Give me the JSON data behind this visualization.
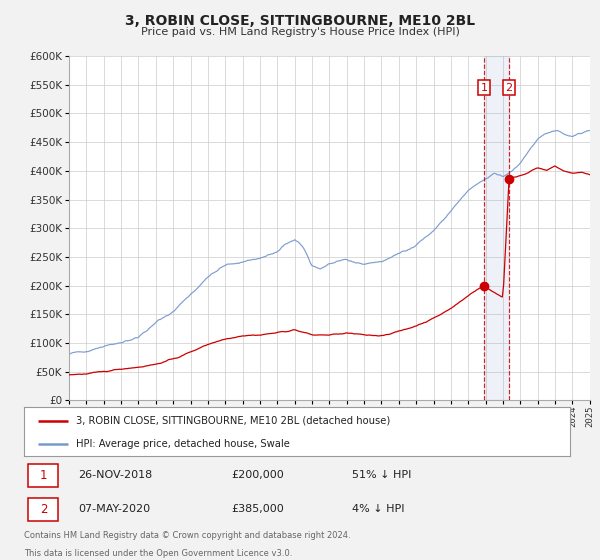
{
  "title": "3, ROBIN CLOSE, SITTINGBOURNE, ME10 2BL",
  "subtitle": "Price paid vs. HM Land Registry's House Price Index (HPI)",
  "legend_line1": "3, ROBIN CLOSE, SITTINGBOURNE, ME10 2BL (detached house)",
  "legend_line2": "HPI: Average price, detached house, Swale",
  "note1": "Contains HM Land Registry data © Crown copyright and database right 2024.",
  "note2": "This data is licensed under the Open Government Licence v3.0.",
  "table_row1": [
    "1",
    "26-NOV-2018",
    "£200,000",
    "51% ↓ HPI"
  ],
  "table_row2": [
    "2",
    "07-MAY-2020",
    "£385,000",
    "4% ↓ HPI"
  ],
  "red_color": "#cc0000",
  "blue_color": "#7799cc",
  "background_color": "#f2f2f2",
  "plot_bg_color": "#ffffff",
  "grid_color": "#cccccc",
  "sale1_date": 2018.9,
  "sale1_price": 200000,
  "sale2_date": 2020.35,
  "sale2_price": 385000,
  "ylim": [
    0,
    600000
  ],
  "xlim_start": 1995,
  "xlim_end": 2025,
  "shade_start": 2018.9,
  "shade_end": 2020.35,
  "hpi_anchors_x": [
    1995,
    1996,
    1997,
    1998,
    1999,
    2000,
    2001,
    2002,
    2003,
    2004,
    2005,
    2006,
    2007,
    2007.5,
    2008,
    2008.5,
    2009,
    2009.5,
    2010,
    2011,
    2012,
    2013,
    2014,
    2015,
    2016,
    2017,
    2018,
    2019,
    2019.5,
    2020,
    2020.5,
    2021,
    2021.5,
    2022,
    2022.5,
    2023,
    2023.5,
    2024,
    2024.5,
    2025
  ],
  "hpi_anchors_y": [
    80000,
    87000,
    95000,
    102000,
    110000,
    135000,
    155000,
    185000,
    215000,
    235000,
    242000,
    248000,
    258000,
    272000,
    280000,
    265000,
    235000,
    230000,
    238000,
    243000,
    238000,
    242000,
    255000,
    272000,
    295000,
    330000,
    365000,
    385000,
    395000,
    390000,
    400000,
    415000,
    435000,
    455000,
    465000,
    468000,
    465000,
    460000,
    465000,
    470000
  ],
  "red_anchors_x": [
    1995,
    1996,
    1997,
    1998,
    1999,
    2000,
    2001,
    2002,
    2003,
    2004,
    2005,
    2006,
    2007,
    2008,
    2009,
    2010,
    2011,
    2012,
    2013,
    2014,
    2015,
    2016,
    2017,
    2018,
    2018.9,
    2019.1,
    2019.5,
    2019.8,
    2020,
    2020.35,
    2020.5,
    2021,
    2021.5,
    2022,
    2022.5,
    2023,
    2023.5,
    2024,
    2024.5,
    2025
  ],
  "red_anchors_y": [
    45000,
    46000,
    50000,
    55000,
    58000,
    63000,
    72000,
    84000,
    98000,
    107000,
    113000,
    114000,
    118000,
    123000,
    114000,
    114000,
    117000,
    114000,
    113000,
    120000,
    130000,
    143000,
    160000,
    183000,
    200000,
    196000,
    188000,
    183000,
    180000,
    385000,
    388000,
    392000,
    398000,
    405000,
    400000,
    408000,
    400000,
    395000,
    398000,
    393000
  ]
}
